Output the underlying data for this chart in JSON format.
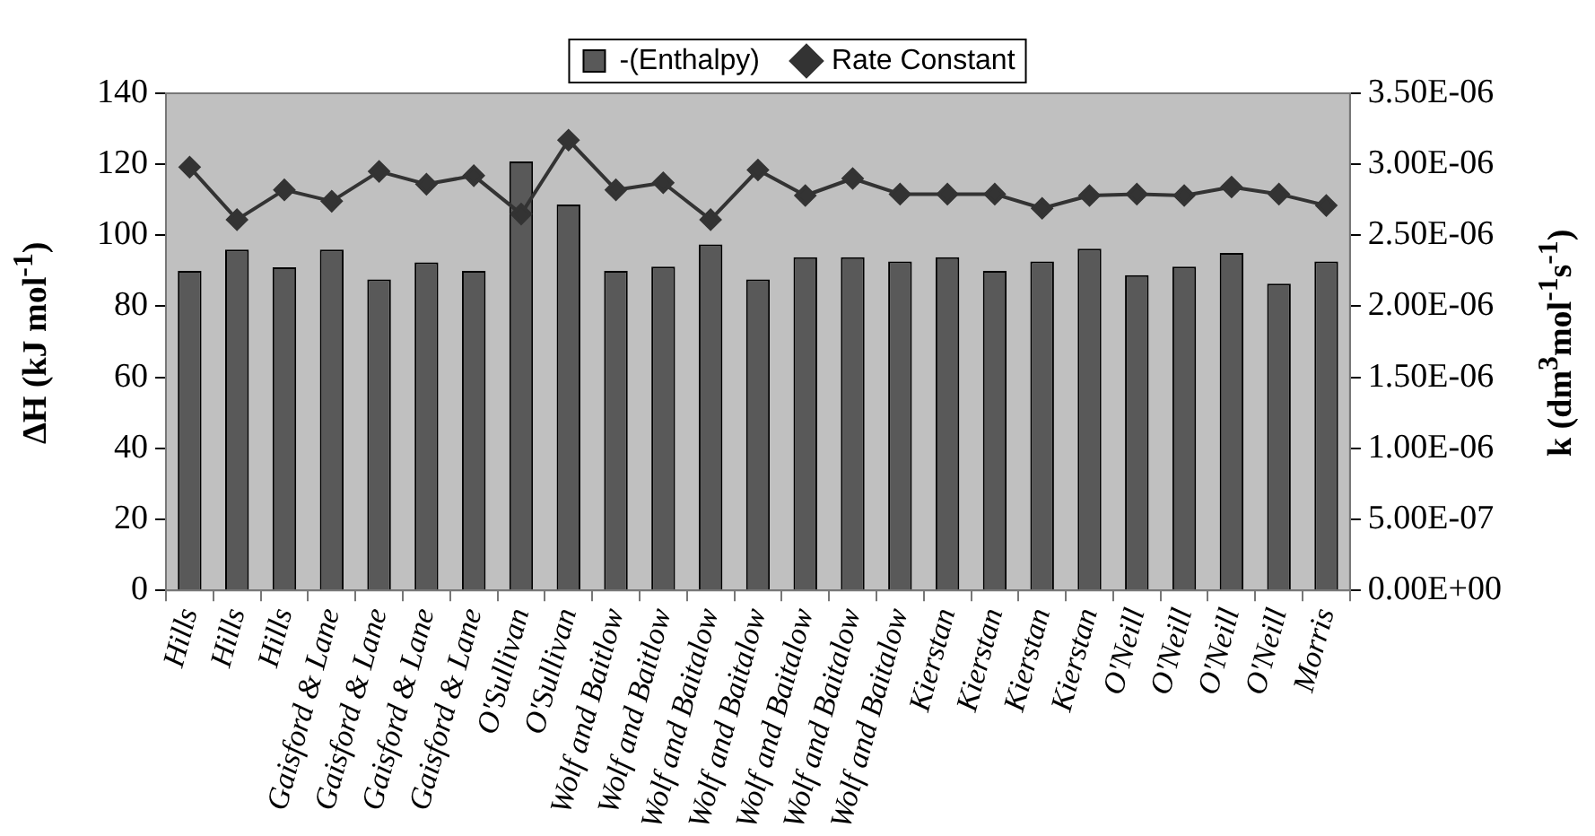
{
  "chart_data": {
    "type": "bar",
    "ylabel": "ΔH (kJ mol$^{-1}$)",
    "y2label": "k (dm$^{3}$mol$^{-1}$s$^{-1}$)",
    "categories": [
      "Hills",
      "Hills",
      "Hills",
      "Gaisford & Lane",
      "Gaisford & Lane",
      "Gaisford & Lane",
      "Gaisford & Lane",
      "O'Sullivan",
      "O'Sullivan",
      "Wolf and Baitlow",
      "Wolf and Baitlow",
      "Wolf and Baitalow",
      "Wolf and Baitalow",
      "Wolf and Baitalow",
      "Wolf and Baitalow",
      "Wolf and Baitalow",
      "Kierstan",
      "Kierstan",
      "Kierstan",
      "Kierstan",
      "O'Neill",
      "O'Neill",
      "O'Neill",
      "O'Neill",
      "Morris"
    ],
    "series": [
      {
        "name": "-(Enthalpy)",
        "color": "#595959",
        "values": [
          90,
          96,
          91,
          96,
          87.6,
          92.4,
          90,
          120.8,
          108.7,
          90,
          91.2,
          97.4,
          87.6,
          93.8,
          93.8,
          92.6,
          93.8,
          90,
          92.6,
          96.2,
          88.8,
          91.2,
          95,
          86.4,
          92.6
        ]
      },
      {
        "name": "Rate Constant",
        "type": "line",
        "axis": "y2",
        "color": "#333333",
        "marker": "diamond",
        "values": [
          2.98e-06,
          2.61e-06,
          2.82e-06,
          2.74e-06,
          2.95e-06,
          2.86e-06,
          2.92e-06,
          2.65e-06,
          3.17e-06,
          2.82e-06,
          2.87e-06,
          2.61e-06,
          2.96e-06,
          2.78e-06,
          2.9e-06,
          2.79e-06,
          2.79e-06,
          2.79e-06,
          2.69e-06,
          2.78e-06,
          2.79e-06,
          2.78e-06,
          2.84e-06,
          2.79e-06,
          2.71e-06
        ]
      }
    ],
    "ylim": [
      0,
      140
    ],
    "yticks": [
      0,
      20,
      40,
      60,
      80,
      100,
      120,
      140
    ],
    "y2lim": [
      0,
      3.5e-06
    ],
    "y2ticks": [
      {
        "value": 0,
        "label": "0.00E+00"
      },
      {
        "value": 5e-07,
        "label": "5.00E-07"
      },
      {
        "value": 1e-06,
        "label": "1.00E-06"
      },
      {
        "value": 1.5e-06,
        "label": "1.50E-06"
      },
      {
        "value": 2e-06,
        "label": "2.00E-06"
      },
      {
        "value": 2.5e-06,
        "label": "2.50E-06"
      },
      {
        "value": 3e-06,
        "label": "3.00E-06"
      },
      {
        "value": 3.5e-06,
        "label": "3.50E-06"
      }
    ],
    "grid": false,
    "legend": "top"
  }
}
